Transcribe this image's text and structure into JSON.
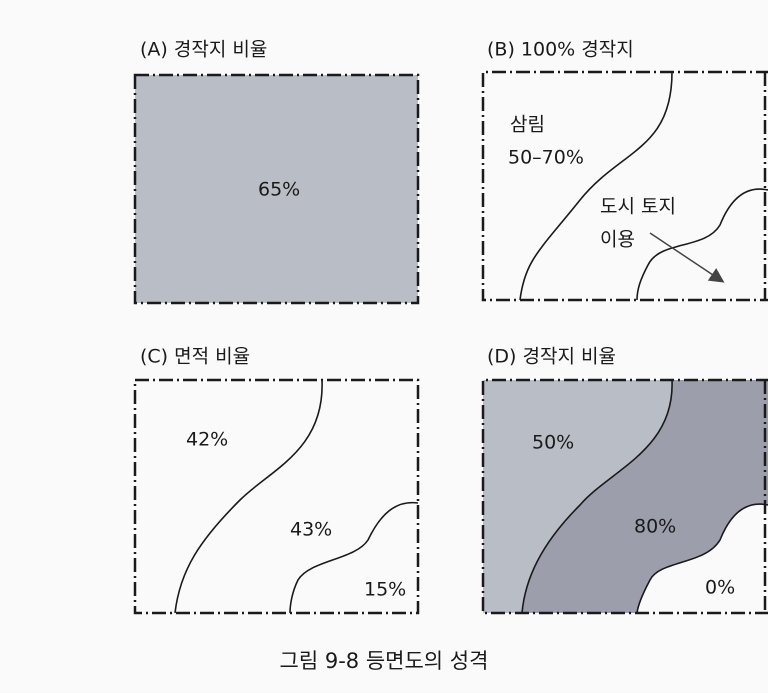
{
  "panels": [
    {
      "title": "(A) 경작지 비율",
      "labels": [
        "65%"
      ]
    },
    {
      "title": "(B) 100% 경작지",
      "labels": [
        "삼림",
        "50–70%",
        "도시 토지",
        "이용"
      ]
    },
    {
      "title": "(C) 면적 비율",
      "labels": [
        "42%",
        "43%",
        "15%"
      ]
    },
    {
      "title": "(D) 경작지 비율",
      "labels": [
        "50%",
        "80%",
        "0%"
      ]
    }
  ],
  "caption": "그림 9-8  등면도의 성격"
}
